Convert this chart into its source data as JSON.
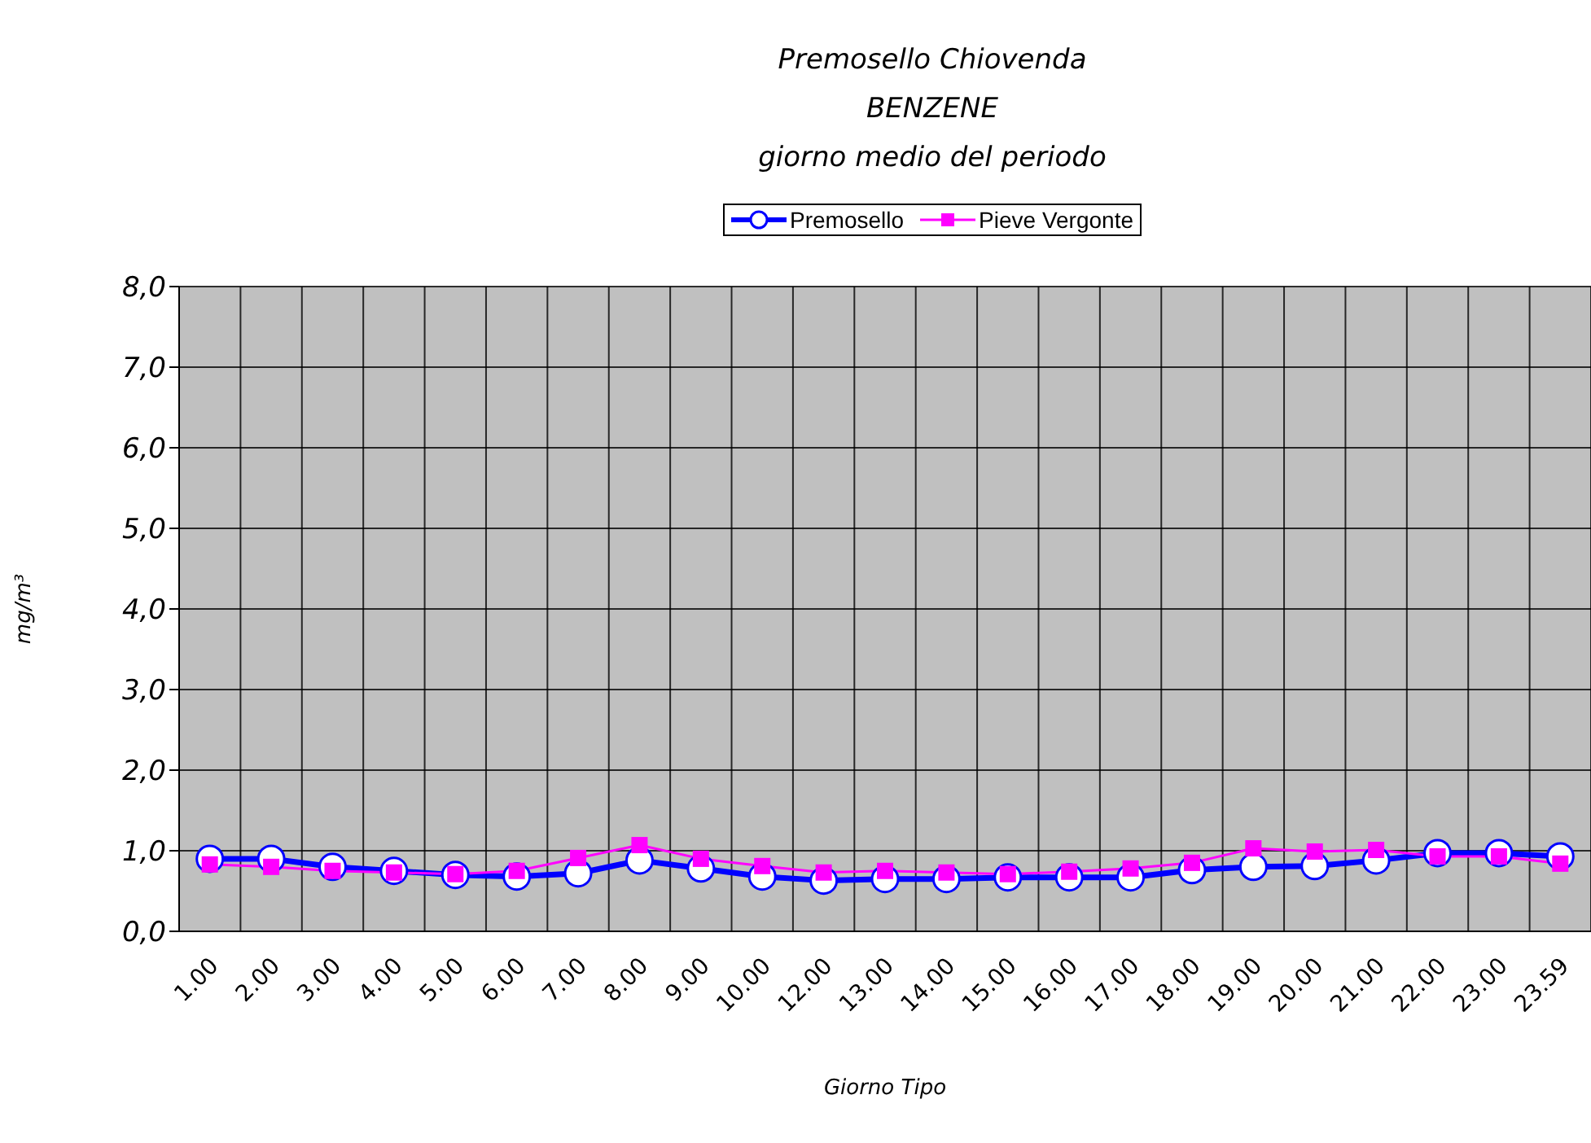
{
  "chart_data": {
    "type": "line",
    "title": "Premosello Chiovenda",
    "subtitle": "BENZENE\ngiorno medio del periodo",
    "xlabel": "Giorno Tipo",
    "ylabel": "mg/m³",
    "categories": [
      "1.00",
      "2.00",
      "3.00",
      "4.00",
      "5.00",
      "6.00",
      "7.00",
      "8.00",
      "9.00",
      "10.00",
      "12.00",
      "13.00",
      "14.00",
      "15.00",
      "16.00",
      "17.00",
      "18.00",
      "19.00",
      "20.00",
      "21.00",
      "22.00",
      "23.00",
      "23.59"
    ],
    "series": [
      {
        "name": "Premosello",
        "color": "#0000ff",
        "marker": "circle",
        "values": [
          0.9,
          0.9,
          0.8,
          0.75,
          0.7,
          0.68,
          0.72,
          0.88,
          0.78,
          0.68,
          0.63,
          0.65,
          0.65,
          0.67,
          0.67,
          0.67,
          0.76,
          0.8,
          0.81,
          0.88,
          0.97,
          0.97,
          0.93
        ]
      },
      {
        "name": "Pieve Vergonte",
        "color": "#ff00ff",
        "marker": "square",
        "values": [
          0.83,
          0.8,
          0.75,
          0.73,
          0.71,
          0.75,
          0.91,
          1.07,
          0.9,
          0.81,
          0.73,
          0.75,
          0.73,
          0.71,
          0.74,
          0.78,
          0.85,
          1.03,
          0.99,
          1.01,
          0.93,
          0.93,
          0.84
        ]
      }
    ],
    "ylim": [
      0,
      8
    ],
    "yticks": [
      {
        "value": 0,
        "label": "0,0"
      },
      {
        "value": 1,
        "label": "1,0"
      },
      {
        "value": 2,
        "label": "2,0"
      },
      {
        "value": 3,
        "label": "3,0"
      },
      {
        "value": 4,
        "label": "4,0"
      },
      {
        "value": 5,
        "label": "5,0"
      },
      {
        "value": 6,
        "label": "6,0"
      },
      {
        "value": 7,
        "label": "7,0"
      },
      {
        "value": 8,
        "label": "8,0"
      }
    ],
    "grid": true,
    "legend": "top",
    "line_style": "solid"
  }
}
